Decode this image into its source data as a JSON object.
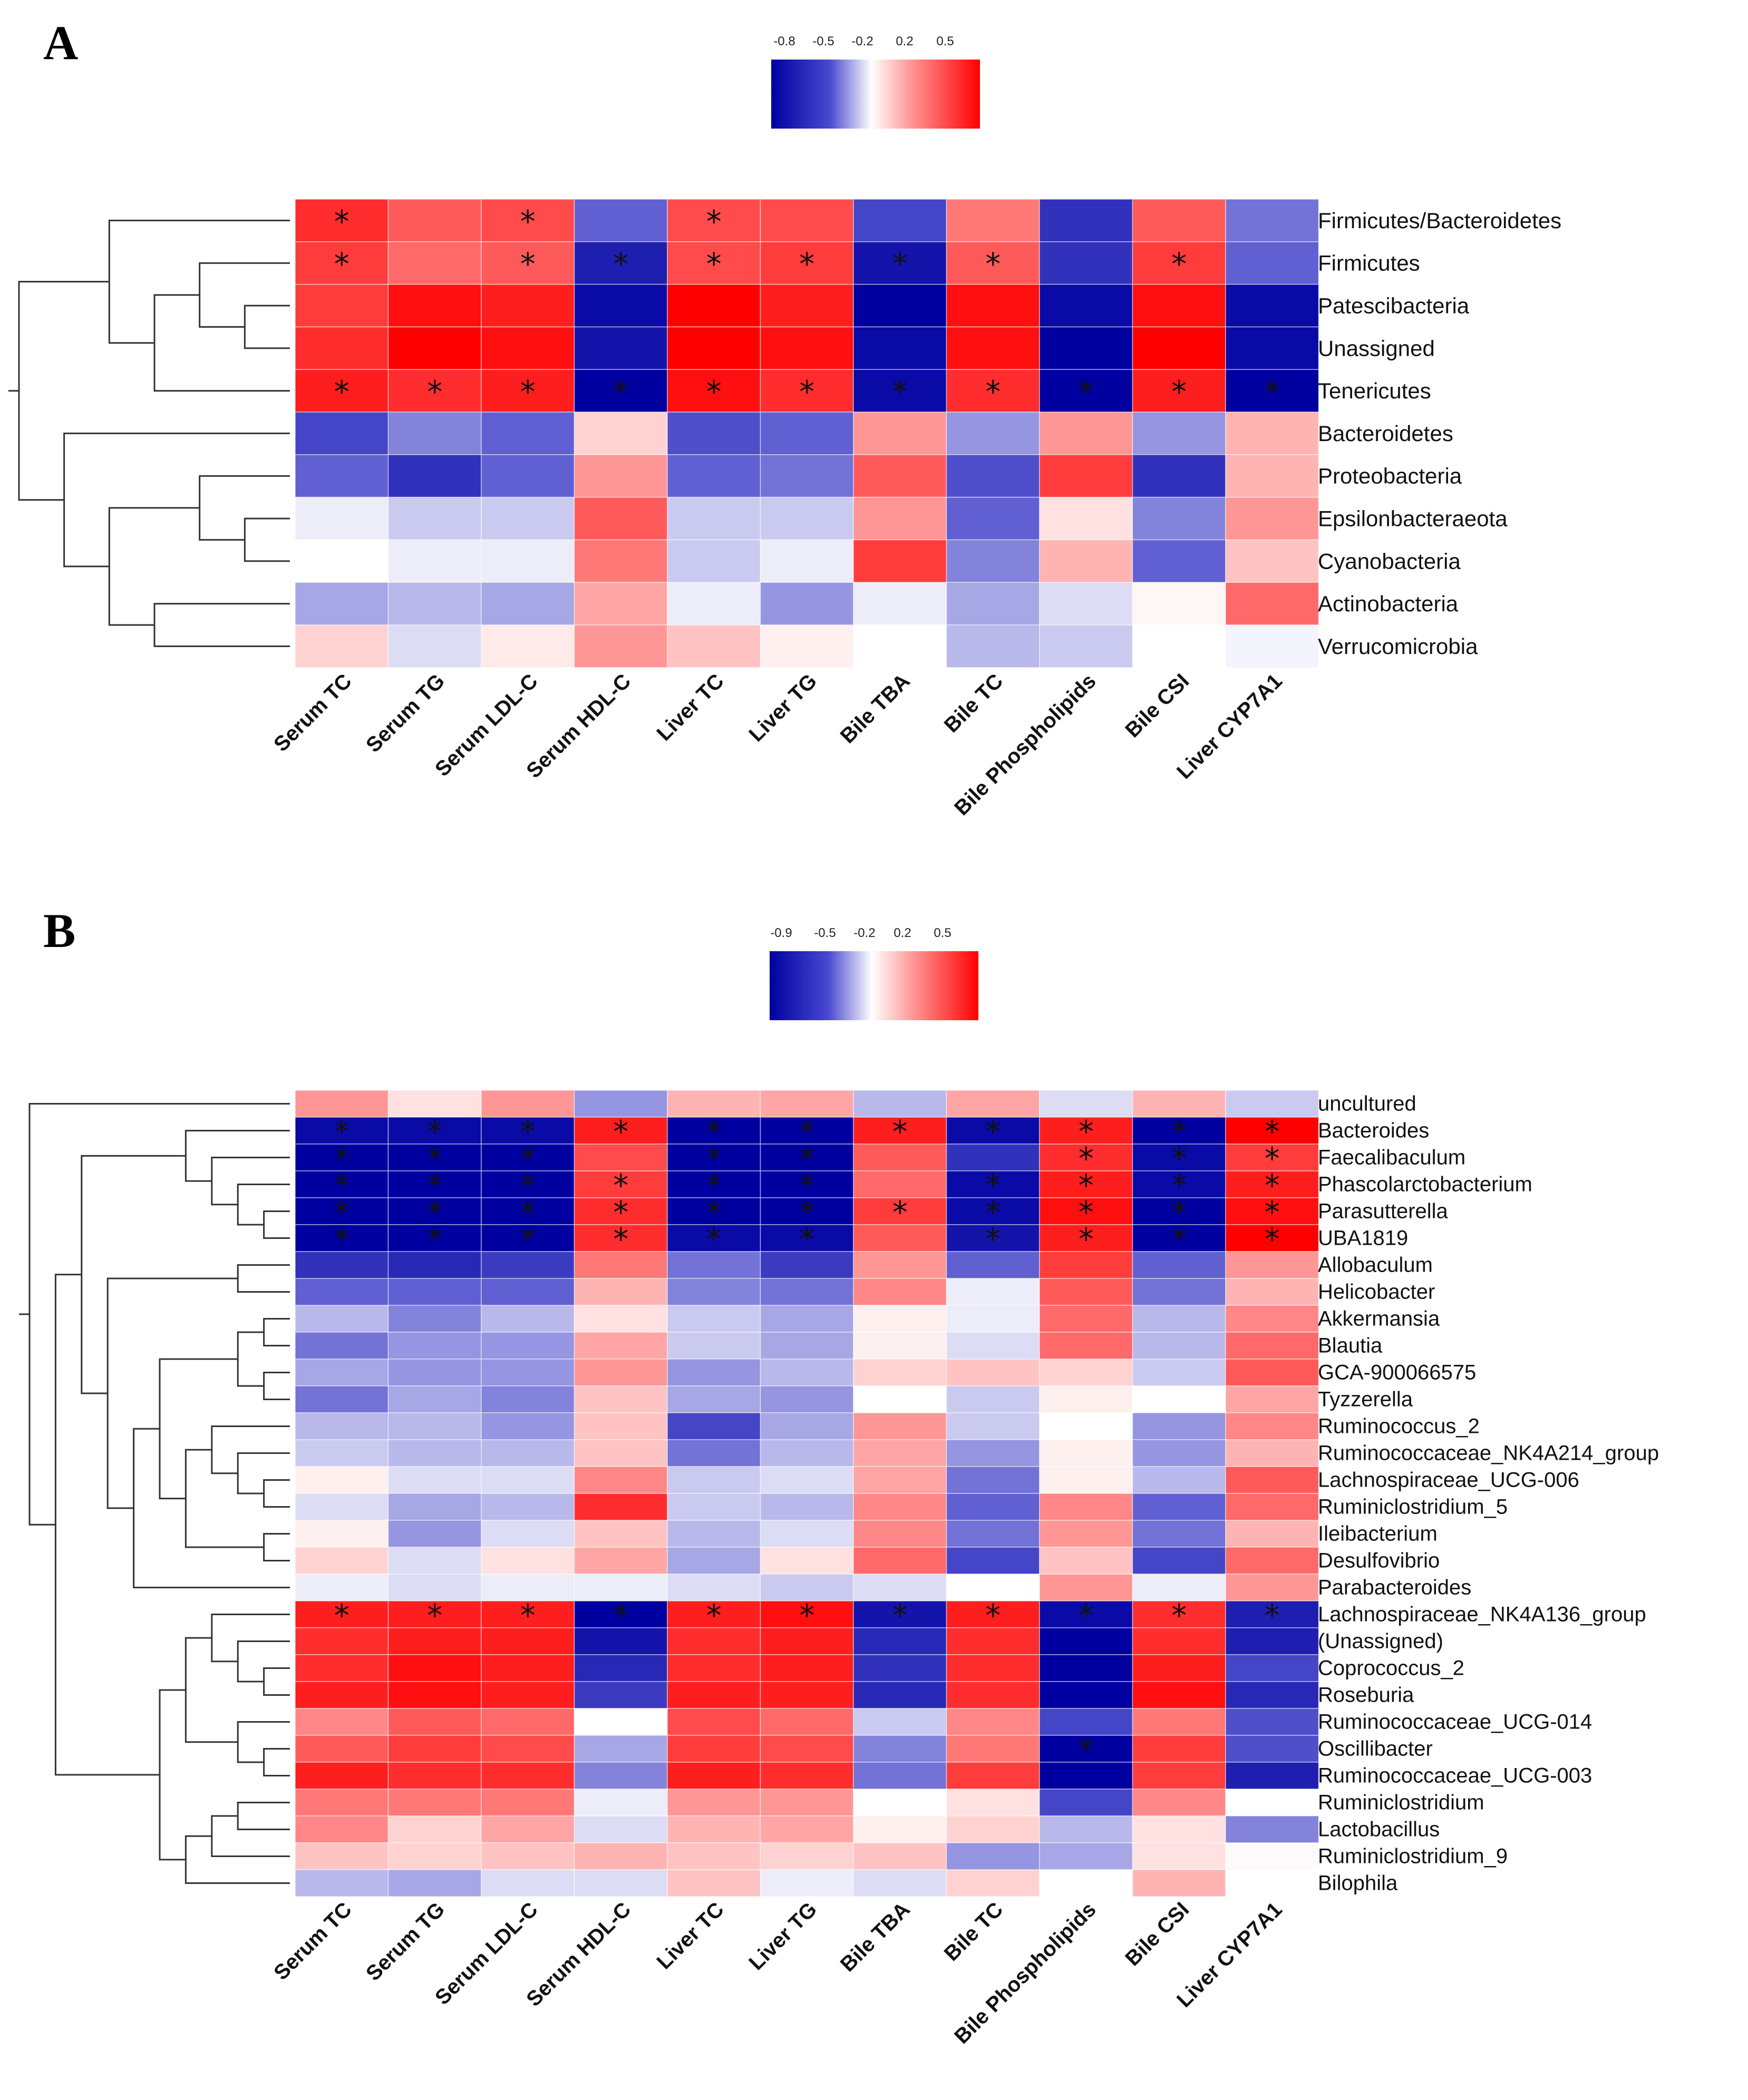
{
  "chart_data": [
    {
      "type": "heatmap",
      "panel_label": "A",
      "legend_ticks": [
        "-0.8",
        "-0.5",
        "-0.2",
        "0.2",
        "0.5"
      ],
      "legend_range": [
        -0.9,
        0.7
      ],
      "columns": [
        "Serum TC",
        "Serum TG",
        "Serum LDL-C",
        "Serum HDL-C",
        "Liver TC",
        "Liver TG",
        "Bile TBA",
        "Bile TC",
        "Bile Phospholipids",
        "Bile CSI",
        "Liver CYP7A1"
      ],
      "rows": [
        "Firmicutes/Bacteroidetes",
        "Firmicutes",
        "Patescibacteria",
        "Unassigned",
        "Tenericutes",
        "Bacteroidetes",
        "Proteobacteria",
        "Epsilonbacteraeota",
        "Cyanobacteria",
        "Actinobacteria",
        "Verrucomicrobia"
      ],
      "values": [
        [
          0.7,
          0.55,
          0.6,
          -0.45,
          0.6,
          0.6,
          -0.55,
          0.45,
          -0.65,
          0.55,
          -0.4
        ],
        [
          0.65,
          0.5,
          0.55,
          -0.75,
          0.6,
          0.65,
          -0.8,
          0.55,
          -0.65,
          0.65,
          -0.45
        ],
        [
          0.65,
          0.8,
          0.75,
          -0.85,
          0.9,
          0.75,
          -0.95,
          0.8,
          -0.85,
          0.8,
          -0.85
        ],
        [
          0.7,
          0.85,
          0.8,
          -0.8,
          0.95,
          0.8,
          -0.85,
          0.8,
          -0.9,
          0.85,
          -0.85
        ],
        [
          0.75,
          0.7,
          0.75,
          -0.9,
          0.8,
          0.7,
          -0.85,
          0.7,
          -0.9,
          0.75,
          -0.9
        ],
        [
          -0.55,
          -0.35,
          -0.45,
          0.15,
          -0.5,
          -0.45,
          0.35,
          -0.3,
          0.35,
          -0.3,
          0.25
        ],
        [
          -0.45,
          -0.65,
          -0.45,
          0.35,
          -0.45,
          -0.4,
          0.55,
          -0.5,
          0.65,
          -0.65,
          0.25
        ],
        [
          -0.05,
          -0.15,
          -0.15,
          0.55,
          -0.15,
          -0.15,
          0.35,
          -0.45,
          0.1,
          -0.35,
          0.35
        ],
        [
          0.0,
          -0.05,
          -0.05,
          0.45,
          -0.15,
          -0.05,
          0.65,
          -0.35,
          0.25,
          -0.45,
          0.2
        ],
        [
          -0.25,
          -0.2,
          -0.25,
          0.3,
          -0.05,
          -0.3,
          -0.05,
          -0.25,
          -0.1,
          0.03,
          0.5
        ],
        [
          0.15,
          -0.1,
          0.07,
          0.35,
          0.2,
          0.05,
          0.0,
          -0.2,
          -0.15,
          0.0,
          -0.03
        ]
      ],
      "significant": [
        [
          0,
          0
        ],
        [
          0,
          2
        ],
        [
          0,
          4
        ],
        [
          1,
          0
        ],
        [
          1,
          2
        ],
        [
          1,
          3
        ],
        [
          1,
          4
        ],
        [
          1,
          5
        ],
        [
          1,
          6
        ],
        [
          1,
          7
        ],
        [
          1,
          9
        ],
        [
          4,
          0
        ],
        [
          4,
          1
        ],
        [
          4,
          2
        ],
        [
          4,
          3
        ],
        [
          4,
          4
        ],
        [
          4,
          5
        ],
        [
          4,
          6
        ],
        [
          4,
          7
        ],
        [
          4,
          8
        ],
        [
          4,
          9
        ],
        [
          4,
          10
        ]
      ],
      "dendrogram": [
        {
          "children": [
            3,
            2
          ],
          "height": 1
        },
        {
          "children": [
            1,
            11
          ],
          "height": 2
        },
        {
          "children": [
            12,
            4
          ],
          "height": 3
        },
        {
          "children": [
            0,
            13
          ],
          "height": 4
        },
        {
          "children": [
            7,
            8
          ],
          "height": 1
        },
        {
          "children": [
            6,
            15
          ],
          "height": 2
        },
        {
          "children": [
            9,
            10
          ],
          "height": 3
        },
        {
          "children": [
            16,
            17
          ],
          "height": 4
        },
        {
          "children": [
            5,
            18
          ],
          "height": 5
        },
        {
          "children": [
            14,
            19
          ],
          "height": 6
        }
      ]
    },
    {
      "type": "heatmap",
      "panel_label": "B",
      "legend_ticks": [
        "-0.9",
        "-0.5",
        "-0.2",
        "0.2",
        "0.5"
      ],
      "legend_range": [
        -1.0,
        0.7
      ],
      "columns": [
        "Serum TC",
        "Serum TG",
        "Serum LDL-C",
        "Serum HDL-C",
        "Liver TC",
        "Liver TG",
        "Bile TBA",
        "Bile TC",
        "Bile Phospholipids",
        "Bile CSI",
        "Liver CYP7A1"
      ],
      "rows": [
        "uncultured",
        "Bacteroides",
        "Faecalibaculum",
        "Phascolarctobacterium",
        "Parasutterella",
        "UBA1819",
        "Allobaculum",
        "Helicobacter",
        "Akkermansia",
        "Blautia",
        "GCA-900066575",
        "Tyzzerella",
        "Ruminococcus_2",
        "Ruminococcaceae_NK4A214_group",
        "Lachnospiraceae_UCG-006",
        "Ruminiclostridium_5",
        "Ileibacterium",
        "Desulfovibrio",
        "Parabacteroides",
        "Lachnospiraceae_NK4A136_group",
        "(Unassigned)",
        "Coprococcus_2",
        "Roseburia",
        "Ruminococcaceae_UCG-014",
        "Oscillibacter",
        "Ruminococcaceae_UCG-003",
        "Ruminiclostridium",
        "Lactobacillus",
        "Ruminiclostridium_9",
        "Bilophila"
      ],
      "values": [
        [
          0.35,
          0.1,
          0.35,
          -0.3,
          0.25,
          0.3,
          -0.2,
          0.3,
          -0.1,
          0.25,
          -0.15
        ],
        [
          -0.85,
          -0.85,
          -0.85,
          0.75,
          -0.95,
          -0.9,
          0.75,
          -0.85,
          0.75,
          -0.9,
          0.85
        ],
        [
          -0.95,
          -0.95,
          -0.95,
          0.6,
          -0.9,
          -0.9,
          0.55,
          -0.65,
          0.7,
          -0.85,
          0.65
        ],
        [
          -0.95,
          -0.95,
          -0.95,
          0.65,
          -0.9,
          -0.9,
          0.5,
          -0.85,
          0.75,
          -0.85,
          0.75
        ],
        [
          -0.95,
          -0.95,
          -0.95,
          0.7,
          -0.9,
          -0.9,
          0.65,
          -0.85,
          0.8,
          -0.9,
          0.8
        ],
        [
          -0.9,
          -0.9,
          -0.9,
          0.7,
          -0.85,
          -0.85,
          0.55,
          -0.8,
          0.75,
          -0.9,
          0.85
        ],
        [
          -0.65,
          -0.7,
          -0.6,
          0.45,
          -0.4,
          -0.6,
          0.35,
          -0.45,
          0.65,
          -0.45,
          0.35
        ],
        [
          -0.45,
          -0.45,
          -0.45,
          0.25,
          -0.35,
          -0.4,
          0.4,
          -0.05,
          0.55,
          -0.4,
          0.25
        ],
        [
          -0.2,
          -0.35,
          -0.2,
          0.1,
          -0.15,
          -0.25,
          0.05,
          -0.05,
          0.5,
          -0.2,
          0.4
        ],
        [
          -0.4,
          -0.3,
          -0.3,
          0.3,
          -0.15,
          -0.25,
          0.05,
          -0.1,
          0.5,
          -0.2,
          0.5
        ],
        [
          -0.25,
          -0.3,
          -0.3,
          0.35,
          -0.3,
          -0.2,
          0.15,
          0.2,
          0.15,
          -0.15,
          0.55
        ],
        [
          -0.4,
          -0.25,
          -0.35,
          0.2,
          -0.25,
          -0.3,
          0.0,
          -0.15,
          0.05,
          0.0,
          0.3
        ],
        [
          -0.2,
          -0.2,
          -0.3,
          0.2,
          -0.55,
          -0.25,
          0.35,
          -0.15,
          0.0,
          -0.3,
          0.4
        ],
        [
          -0.15,
          -0.2,
          -0.2,
          0.2,
          -0.4,
          -0.2,
          0.3,
          -0.3,
          0.05,
          -0.3,
          0.25
        ],
        [
          0.05,
          -0.1,
          -0.1,
          0.4,
          -0.15,
          -0.1,
          0.3,
          -0.4,
          0.05,
          -0.2,
          0.55
        ],
        [
          -0.1,
          -0.25,
          -0.2,
          0.7,
          -0.15,
          -0.2,
          0.4,
          -0.45,
          0.4,
          -0.45,
          0.5
        ],
        [
          0.05,
          -0.3,
          -0.1,
          0.2,
          -0.2,
          -0.1,
          0.4,
          -0.4,
          0.35,
          -0.4,
          0.25
        ],
        [
          0.15,
          -0.1,
          0.1,
          0.3,
          -0.25,
          0.1,
          0.5,
          -0.55,
          0.2,
          -0.55,
          0.5
        ],
        [
          -0.05,
          -0.1,
          -0.05,
          -0.05,
          -0.1,
          -0.15,
          -0.1,
          0.0,
          0.35,
          -0.05,
          0.35
        ],
        [
          0.75,
          0.75,
          0.75,
          -0.9,
          0.75,
          0.8,
          -0.8,
          0.75,
          -0.85,
          0.7,
          -0.75
        ],
        [
          0.7,
          0.75,
          0.75,
          -0.8,
          0.7,
          0.75,
          -0.7,
          0.7,
          -0.9,
          0.7,
          -0.75
        ],
        [
          0.7,
          0.8,
          0.75,
          -0.7,
          0.7,
          0.75,
          -0.65,
          0.7,
          -0.95,
          0.75,
          -0.55
        ],
        [
          0.75,
          0.8,
          0.75,
          -0.6,
          0.75,
          0.75,
          -0.7,
          0.7,
          -0.95,
          0.8,
          -0.7
        ],
        [
          0.4,
          0.55,
          0.5,
          0.0,
          0.6,
          0.5,
          -0.15,
          0.4,
          -0.55,
          0.45,
          -0.5
        ],
        [
          0.55,
          0.65,
          0.6,
          -0.25,
          0.65,
          0.6,
          -0.35,
          0.45,
          -0.95,
          0.65,
          -0.5
        ],
        [
          0.75,
          0.7,
          0.7,
          -0.35,
          0.75,
          0.7,
          -0.4,
          0.65,
          -0.9,
          0.65,
          -0.75
        ],
        [
          0.45,
          0.45,
          0.45,
          -0.05,
          0.35,
          0.35,
          0.0,
          0.1,
          -0.55,
          0.4,
          0.0
        ],
        [
          0.4,
          0.15,
          0.3,
          -0.1,
          0.25,
          0.3,
          0.05,
          0.15,
          -0.2,
          0.1,
          -0.35
        ],
        [
          0.2,
          0.15,
          0.2,
          0.25,
          0.2,
          0.15,
          0.2,
          -0.3,
          -0.25,
          0.1,
          0.02
        ],
        [
          -0.2,
          -0.25,
          -0.1,
          -0.1,
          0.2,
          -0.05,
          -0.1,
          0.15,
          0.0,
          0.25,
          0.0
        ]
      ],
      "significant": [
        [
          1,
          0
        ],
        [
          1,
          1
        ],
        [
          1,
          2
        ],
        [
          1,
          3
        ],
        [
          1,
          4
        ],
        [
          1,
          5
        ],
        [
          1,
          6
        ],
        [
          1,
          7
        ],
        [
          1,
          8
        ],
        [
          1,
          9
        ],
        [
          1,
          10
        ],
        [
          2,
          0
        ],
        [
          2,
          1
        ],
        [
          2,
          2
        ],
        [
          2,
          4
        ],
        [
          2,
          5
        ],
        [
          2,
          8
        ],
        [
          2,
          9
        ],
        [
          2,
          10
        ],
        [
          3,
          0
        ],
        [
          3,
          1
        ],
        [
          3,
          2
        ],
        [
          3,
          3
        ],
        [
          3,
          4
        ],
        [
          3,
          5
        ],
        [
          3,
          7
        ],
        [
          3,
          8
        ],
        [
          3,
          9
        ],
        [
          3,
          10
        ],
        [
          4,
          0
        ],
        [
          4,
          1
        ],
        [
          4,
          2
        ],
        [
          4,
          3
        ],
        [
          4,
          4
        ],
        [
          4,
          5
        ],
        [
          4,
          6
        ],
        [
          4,
          7
        ],
        [
          4,
          8
        ],
        [
          4,
          9
        ],
        [
          4,
          10
        ],
        [
          5,
          0
        ],
        [
          5,
          1
        ],
        [
          5,
          2
        ],
        [
          5,
          3
        ],
        [
          5,
          4
        ],
        [
          5,
          5
        ],
        [
          5,
          7
        ],
        [
          5,
          8
        ],
        [
          5,
          9
        ],
        [
          5,
          10
        ],
        [
          19,
          0
        ],
        [
          19,
          1
        ],
        [
          19,
          2
        ],
        [
          19,
          3
        ],
        [
          19,
          4
        ],
        [
          19,
          5
        ],
        [
          19,
          6
        ],
        [
          19,
          7
        ],
        [
          19,
          8
        ],
        [
          19,
          9
        ],
        [
          19,
          10
        ],
        [
          24,
          8
        ]
      ],
      "dendrogram": [
        {
          "children": [
            4,
            5
          ],
          "height": 1
        },
        {
          "children": [
            3,
            30
          ],
          "height": 2
        },
        {
          "children": [
            2,
            31
          ],
          "height": 3
        },
        {
          "children": [
            1,
            32
          ],
          "height": 4
        },
        {
          "children": [
            6,
            7
          ],
          "height": 2
        },
        {
          "children": [
            8,
            9
          ],
          "height": 1
        },
        {
          "children": [
            10,
            11
          ],
          "height": 1
        },
        {
          "children": [
            35,
            36
          ],
          "height": 2
        },
        {
          "children": [
            14,
            15
          ],
          "height": 1
        },
        {
          "children": [
            13,
            38
          ],
          "height": 2
        },
        {
          "children": [
            12,
            39
          ],
          "height": 3
        },
        {
          "children": [
            16,
            17
          ],
          "height": 1
        },
        {
          "children": [
            40,
            41
          ],
          "height": 4
        },
        {
          "children": [
            37,
            42
          ],
          "height": 5
        },
        {
          "children": [
            43,
            18
          ],
          "height": 6
        },
        {
          "children": [
            34,
            44
          ],
          "height": 7
        },
        {
          "children": [
            33,
            45
          ],
          "height": 8
        },
        {
          "children": [
            21,
            22
          ],
          "height": 1
        },
        {
          "children": [
            20,
            47
          ],
          "height": 2
        },
        {
          "children": [
            19,
            48
          ],
          "height": 3
        },
        {
          "children": [
            24,
            25
          ],
          "height": 1
        },
        {
          "children": [
            23,
            50
          ],
          "height": 2
        },
        {
          "children": [
            49,
            51
          ],
          "height": 4
        },
        {
          "children": [
            26,
            27
          ],
          "height": 2
        },
        {
          "children": [
            53,
            28
          ],
          "height": 3
        },
        {
          "children": [
            54,
            29
          ],
          "height": 4
        },
        {
          "children": [
            52,
            55
          ],
          "height": 5
        },
        {
          "children": [
            46,
            56
          ],
          "height": 9
        },
        {
          "children": [
            0,
            57
          ],
          "height": 10
        }
      ]
    }
  ]
}
